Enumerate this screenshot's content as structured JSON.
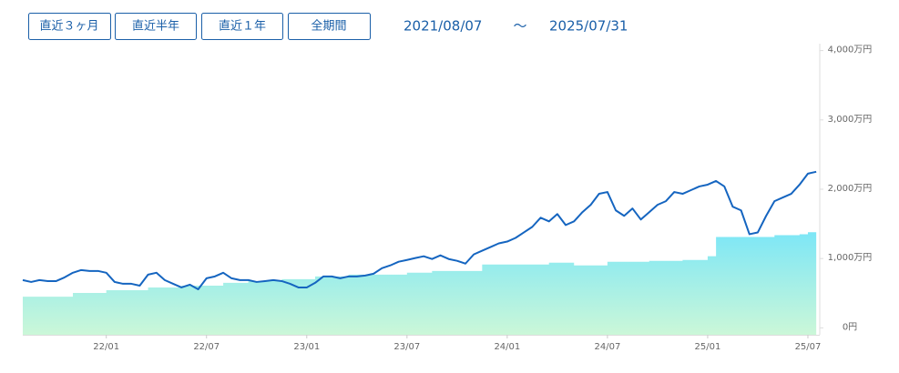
{
  "controls": {
    "buttons": [
      "直近３ヶ月",
      "直近半年",
      "直近１年",
      "全期間"
    ],
    "date_from": "2021/08/07",
    "date_sep": "～",
    "date_to": "2025/07/31"
  },
  "chart_data": {
    "type": "line",
    "categories": [
      null,
      null,
      null,
      null,
      null,
      null,
      null,
      null,
      null,
      null,
      "22/01",
      null,
      null,
      null,
      null,
      null,
      null,
      null,
      null,
      null,
      null,
      null,
      "22/07",
      null,
      null,
      null,
      null,
      null,
      null,
      null,
      null,
      null,
      null,
      null,
      "23/01",
      null,
      null,
      null,
      null,
      null,
      null,
      null,
      null,
      null,
      null,
      null,
      "23/07",
      null,
      null,
      null,
      null,
      null,
      null,
      null,
      null,
      null,
      null,
      null,
      "24/01",
      null,
      null,
      null,
      null,
      null,
      null,
      null,
      null,
      null,
      null,
      null,
      "24/07",
      null,
      null,
      null,
      null,
      null,
      null,
      null,
      null,
      null,
      null,
      null,
      "25/01",
      null,
      null,
      null,
      null,
      null,
      null,
      null,
      null,
      null,
      null,
      null,
      "25/07",
      null
    ],
    "series": [
      {
        "type": "area",
        "color": "#7be6f7",
        "color_bottom": "#cbf7d8",
        "values": [
          450,
          450,
          450,
          450,
          450,
          450,
          503,
          503,
          503,
          503,
          543,
          543,
          543,
          543,
          543,
          583,
          583,
          583,
          583,
          609,
          609,
          609,
          609,
          609,
          649,
          649,
          649,
          675,
          675,
          675,
          675,
          702,
          702,
          702,
          702,
          742,
          742,
          742,
          742,
          768,
          768,
          768,
          768,
          768,
          768,
          768,
          795,
          795,
          795,
          821,
          821,
          821,
          821,
          821,
          821,
          914,
          914,
          914,
          914,
          914,
          914,
          914,
          914,
          940,
          940,
          940,
          901,
          901,
          901,
          901,
          954,
          954,
          954,
          954,
          954,
          967,
          967,
          967,
          967,
          980,
          980,
          980,
          1033,
          1311,
          1311,
          1311,
          1311,
          1311,
          1311,
          1311,
          1338,
          1338,
          1338,
          1351,
          1380,
          1417
        ]
      },
      {
        "type": "line",
        "color": "#1565c0",
        "values": [
          689,
          662,
          689,
          675,
          675,
          728,
          795,
          834,
          821,
          821,
          795,
          662,
          636,
          636,
          609,
          768,
          795,
          689,
          636,
          583,
          623,
          556,
          715,
          742,
          795,
          715,
          689,
          689,
          662,
          675,
          689,
          675,
          636,
          583,
          583,
          649,
          742,
          742,
          715,
          742,
          742,
          755,
          781,
          861,
          901,
          954,
          980,
          1007,
          1033,
          993,
          1046,
          993,
          967,
          927,
          1060,
          1113,
          1166,
          1219,
          1245,
          1298,
          1377,
          1457,
          1589,
          1536,
          1642,
          1483,
          1536,
          1669,
          1775,
          1934,
          1960,
          1695,
          1616,
          1722,
          1563,
          1669,
          1775,
          1828,
          1960,
          1934,
          1987,
          2040,
          2066,
          2119,
          2040,
          1748,
          1695,
          1351,
          1377,
          1616,
          1828,
          1881,
          1934,
          2066,
          2225,
          2252
        ]
      }
    ],
    "ylim": [
      -100,
      4100
    ],
    "yticks": [
      {
        "value": 0,
        "label": "0円"
      },
      {
        "value": 1000,
        "label": "1,000万円"
      },
      {
        "value": 2000,
        "label": "2,000万円"
      },
      {
        "value": 3000,
        "label": "3,000万円"
      },
      {
        "value": 4000,
        "label": "4,000万円"
      }
    ],
    "grid": false
  }
}
